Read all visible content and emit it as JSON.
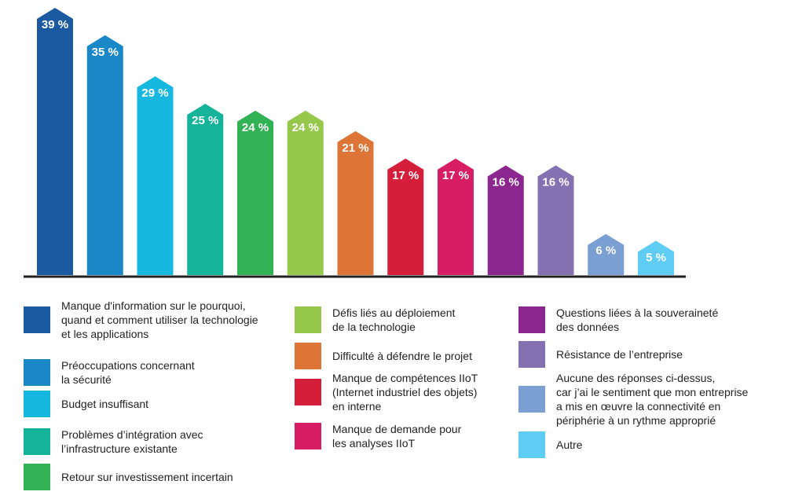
{
  "chart_data": {
    "type": "bar",
    "categories": [
      "Manque d'information sur le pourquoi,\nquand et comment utiliser la technologie\net les applications",
      "Préoccupations concernant\nla sécurité",
      "Budget insuffisant",
      "Problèmes d’intégration avec\nl’infrastructure existante",
      "Retour sur investissement incertain",
      "Défis liés au déploiement\nde la technologie",
      "Difficulté à défendre le projet",
      "Manque de compétences IIoT\n(Internet industriel des objets)\nen interne",
      "Manque de demande pour\nles analyses IIoT",
      "Questions liées à la souveraineté\ndes données",
      "Résistance de l’entreprise",
      "Aucune des réponses ci-dessus,\ncar j’ai le sentiment que mon entreprise\na mis en œuvre la connectivité en\npériphérie à un rythme approprié",
      "Autre"
    ],
    "values": [
      39,
      35,
      29,
      25,
      24,
      24,
      21,
      17,
      17,
      16,
      16,
      6,
      5
    ],
    "value_labels": [
      "39 %",
      "35 %",
      "29 %",
      "25 %",
      "24 %",
      "24 %",
      "21 %",
      "17 %",
      "17 %",
      "16 %",
      "16 %",
      "6 %",
      "5 %"
    ],
    "colors": [
      "#1b5aa0",
      "#1a87c6",
      "#17b8e0",
      "#14b39a",
      "#33b155",
      "#96c84b",
      "#dd7537",
      "#d51f3a",
      "#d71d63",
      "#8c2790",
      "#8371b2",
      "#7b9ed3",
      "#5fcdf3"
    ],
    "title": "",
    "xlabel": "",
    "ylabel": "",
    "ylim": [
      0,
      39
    ],
    "grid": false,
    "legend_position": "bottom",
    "baseline_color": "#222222"
  }
}
